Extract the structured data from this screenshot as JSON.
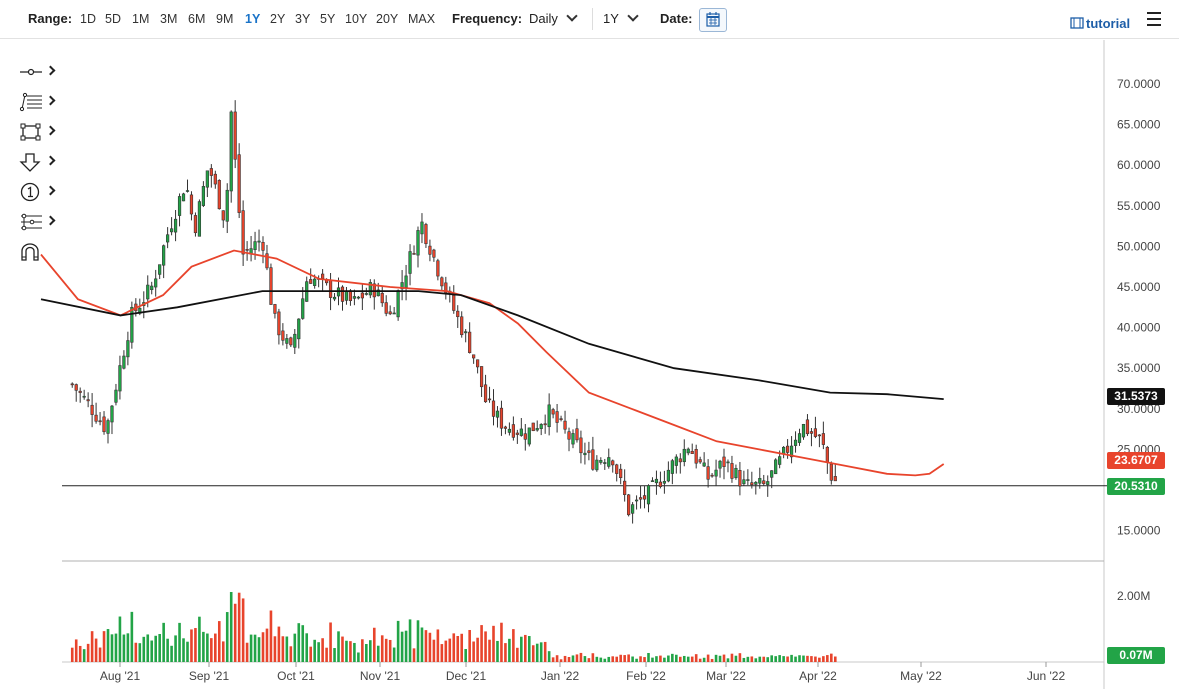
{
  "toolbar": {
    "range_label": "Range:",
    "ranges": [
      "1D",
      "5D",
      "1M",
      "3M",
      "6M",
      "9M",
      "1Y",
      "2Y",
      "3Y",
      "5Y",
      "10Y",
      "20Y",
      "MAX"
    ],
    "active_range": "1Y",
    "frequency_label": "Frequency:",
    "frequency_value": "Daily",
    "period_value": "1Y",
    "date_label": "Date:",
    "calendar_icon": "calendar-icon",
    "tutorial_label": "tutorial",
    "tutorial_icon": "film-icon",
    "menu_icon": "hamburger-menu-icon"
  },
  "drawing_tools": [
    {
      "icon": "line-segment-icon"
    },
    {
      "icon": "fibonacci-icon"
    },
    {
      "icon": "rectangle-icon"
    },
    {
      "icon": "arrow-down-icon"
    },
    {
      "icon": "numbered-marker-icon"
    },
    {
      "icon": "parallel-channel-icon"
    },
    {
      "icon": "magnet-icon"
    }
  ],
  "chart_data": [
    {
      "type": "candlestick",
      "panel": "price",
      "x_ticks": [
        "Aug '21",
        "Sep '21",
        "Oct '21",
        "Nov '21",
        "Dec '21",
        "Jan '22",
        "Feb '22",
        "Mar '22",
        "Apr '22",
        "May '22",
        "Jun '22"
      ],
      "y_ticks": [
        "70.0000",
        "65.0000",
        "60.0000",
        "55.0000",
        "50.0000",
        "45.0000",
        "40.0000",
        "35.0000",
        "30.0000",
        "25.0000",
        "20.0000",
        "15.0000"
      ],
      "ylim": [
        13.5,
        72.5
      ],
      "grid": false,
      "close_path": [
        [
          "2021-07-15",
          33.0
        ],
        [
          "2021-07-22",
          30.0
        ],
        [
          "2021-07-27",
          27.5
        ],
        [
          "2021-08-02",
          37.0
        ],
        [
          "2021-08-05",
          41.5
        ],
        [
          "2021-08-12",
          45.0
        ],
        [
          "2021-08-18",
          52.0
        ],
        [
          "2021-08-24",
          58.0
        ],
        [
          "2021-08-27",
          52.0
        ],
        [
          "2021-09-01",
          60.0
        ],
        [
          "2021-09-07",
          53.0
        ],
        [
          "2021-09-09",
          66.5
        ],
        [
          "2021-09-13",
          49.0
        ],
        [
          "2021-09-20",
          51.0
        ],
        [
          "2021-09-24",
          41.0
        ],
        [
          "2021-09-30",
          37.0
        ],
        [
          "2021-10-06",
          46.5
        ],
        [
          "2021-10-14",
          44.5
        ],
        [
          "2021-10-22",
          43.0
        ],
        [
          "2021-10-29",
          45.0
        ],
        [
          "2021-11-04",
          41.5
        ],
        [
          "2021-11-10",
          47.5
        ],
        [
          "2021-11-15",
          53.0
        ],
        [
          "2021-11-20",
          48.0
        ],
        [
          "2021-11-26",
          42.5
        ],
        [
          "2021-12-03",
          37.0
        ],
        [
          "2021-12-08",
          30.5
        ],
        [
          "2021-12-14",
          28.0
        ],
        [
          "2021-12-22",
          27.0
        ],
        [
          "2021-12-30",
          29.5
        ],
        [
          "2022-01-06",
          26.5
        ],
        [
          "2022-01-14",
          23.5
        ],
        [
          "2022-01-21",
          24.5
        ],
        [
          "2022-01-27",
          17.5
        ],
        [
          "2022-02-03",
          19.5
        ],
        [
          "2022-02-10",
          22.5
        ],
        [
          "2022-02-17",
          25.5
        ],
        [
          "2022-02-24",
          21.5
        ],
        [
          "2022-03-02",
          23.5
        ],
        [
          "2022-03-09",
          20.5
        ],
        [
          "2022-03-16",
          20.5
        ],
        [
          "2022-03-23",
          24.5
        ],
        [
          "2022-03-29",
          28.0
        ],
        [
          "2022-04-05",
          26.0
        ],
        [
          "2022-04-08",
          22.0
        ],
        [
          "2022-04-11",
          20.5
        ]
      ],
      "series": [
        {
          "name": "",
          "color": "#e8442c",
          "values": [
            [
              -28,
              49.0
            ],
            [
              -15,
              43.5
            ],
            [
              0,
              41.5
            ],
            [
              15,
              44.0
            ],
            [
              25,
              47.5
            ],
            [
              40,
              49.5
            ],
            [
              55,
              48.5
            ],
            [
              70,
              46.0
            ],
            [
              95,
              45.0
            ],
            [
              115,
              44.5
            ],
            [
              130,
              43.0
            ],
            [
              140,
              40.5
            ],
            [
              150,
              37.0
            ],
            [
              165,
              32.0
            ],
            [
              180,
              30.0
            ],
            [
              195,
              28.0
            ],
            [
              210,
              26.0
            ],
            [
              225,
              25.0
            ],
            [
              240,
              24.0
            ],
            [
              255,
              23.0
            ],
            [
              270,
              22.0
            ],
            [
              280,
              21.8
            ],
            [
              285,
              22.0
            ],
            [
              290,
              23.2
            ]
          ]
        },
        {
          "name": "",
          "color": "#111111",
          "values": [
            [
              -28,
              43.5
            ],
            [
              0,
              41.5
            ],
            [
              20,
              42.5
            ],
            [
              50,
              44.5
            ],
            [
              75,
              44.5
            ],
            [
              105,
              44.5
            ],
            [
              120,
              44.0
            ],
            [
              140,
              41.5
            ],
            [
              165,
              38.0
            ],
            [
              195,
              35.0
            ],
            [
              225,
              33.5
            ],
            [
              250,
              32.0
            ],
            [
              270,
              31.8
            ],
            [
              290,
              31.2
            ]
          ]
        }
      ],
      "tags": [
        {
          "label": "31.5373",
          "color": "#111111"
        },
        {
          "label": "23.6707",
          "color": "#e8442c"
        },
        {
          "label": "20.5310",
          "color": "#22a447"
        }
      ],
      "last_price": 20.531
    },
    {
      "type": "bar",
      "panel": "volume",
      "y_ticks": [
        "2.00M"
      ],
      "last_volume_tag": "0.07M",
      "up_color": "#22a447",
      "down_color": "#e8442c"
    }
  ]
}
